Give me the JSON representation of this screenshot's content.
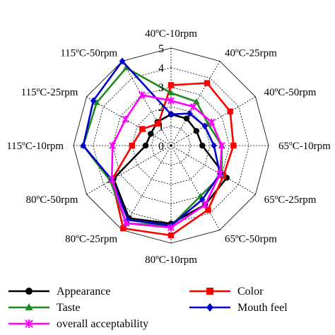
{
  "chart_data": {
    "type": "radar",
    "title": "",
    "categories": [
      "40ºC-10rpm",
      "40ºC-25rpm",
      "40ºC-50rpm",
      "65ºC-10rpm",
      "65ºC-25rpm",
      "65ºC-50rpm",
      "80ºC-10rpm",
      "80ºC-25rpm",
      "80ºC-50rpm",
      "115ºC-10rpm",
      "115ºC-25rpm",
      "115ºC-50rpm"
    ],
    "rlim": [
      0,
      5
    ],
    "ticks": [
      "0",
      "1",
      "2",
      "3",
      "4",
      "5"
    ],
    "grid": true,
    "legend_position": "bottom",
    "series": [
      {
        "name": "Appearance",
        "color": "#000000",
        "marker": "circle",
        "values": [
          1.6,
          1.6,
          1.5,
          1.6,
          3.3,
          3.5,
          4.0,
          4.3,
          3.4,
          1.3,
          1.2,
          1.4
        ]
      },
      {
        "name": "Color",
        "color": "#ff0000",
        "marker": "square",
        "values": [
          3.1,
          3.7,
          3.5,
          3.2,
          3.1,
          3.8,
          4.6,
          4.9,
          3.5,
          2.0,
          1.7,
          1.3
        ]
      },
      {
        "name": "Taste",
        "color": "#1e8a1e",
        "marker": "triangle",
        "values": [
          2.7,
          2.6,
          2.2,
          2.6,
          3.0,
          3.0,
          4.1,
          4.6,
          3.6,
          4.5,
          4.4,
          4.6
        ]
      },
      {
        "name": "Mouth feel",
        "color": "#0000cc",
        "marker": "diamond",
        "values": [
          1.6,
          1.9,
          2.0,
          2.2,
          2.9,
          3.2,
          4.1,
          4.4,
          3.5,
          4.5,
          4.6,
          5.0
        ]
      },
      {
        "name": "overall acceptability",
        "color": "#ff00ff",
        "marker": "star",
        "values": [
          2.3,
          2.3,
          2.4,
          2.6,
          2.9,
          3.5,
          4.2,
          4.6,
          3.5,
          3.0,
          2.7,
          3.0
        ]
      }
    ]
  }
}
